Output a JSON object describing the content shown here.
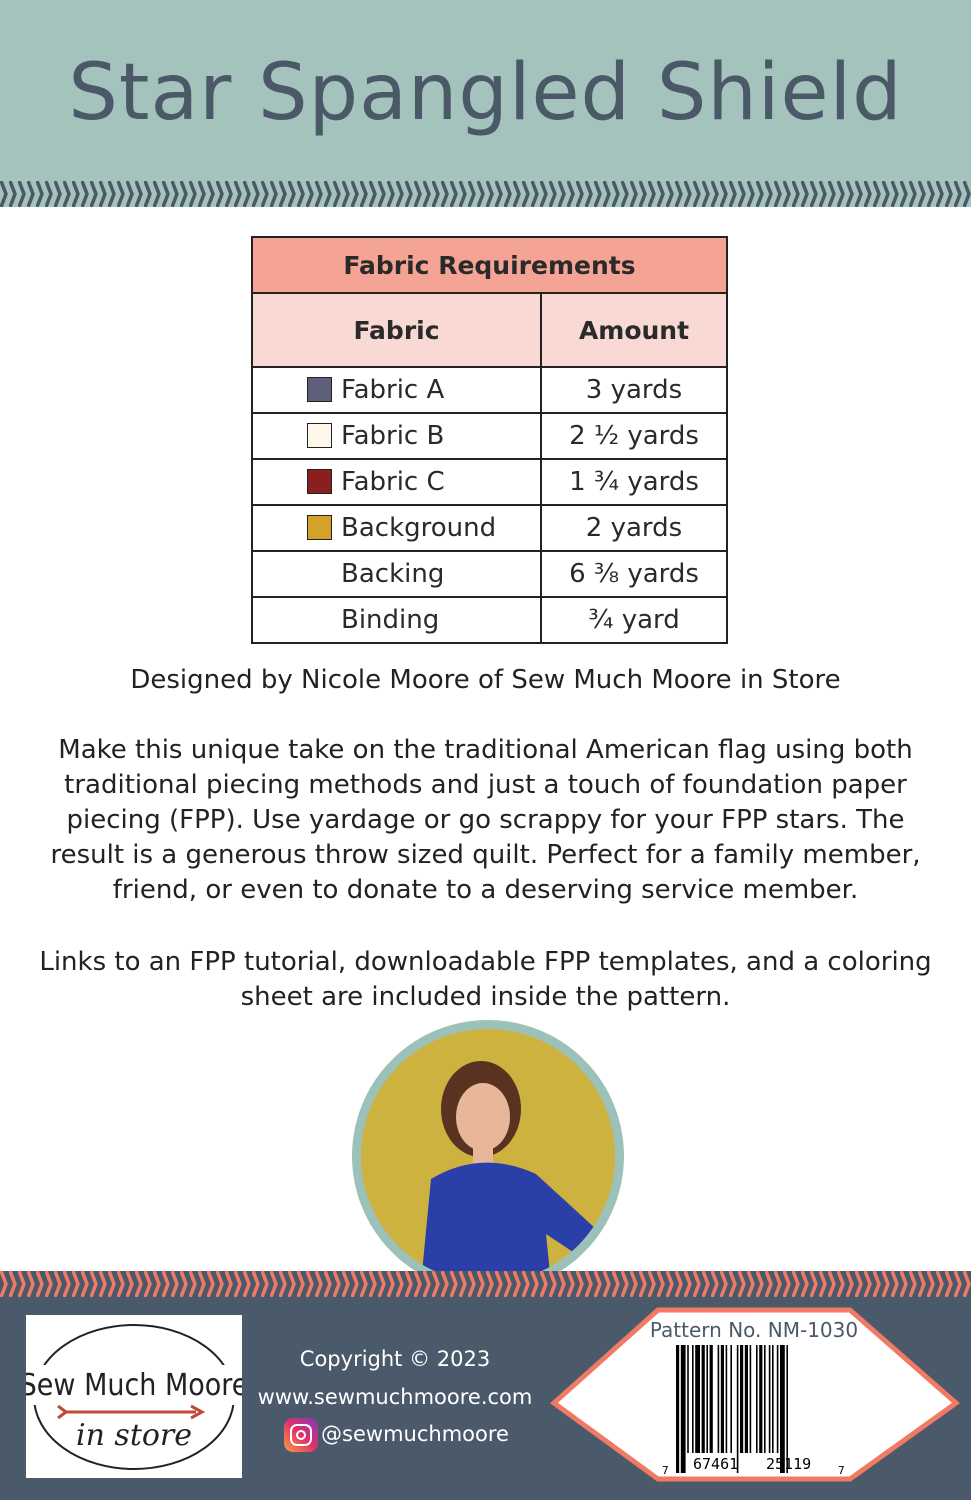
{
  "title": "Star Spangled Shield",
  "colors": {
    "header": "#a3c3bc",
    "title": "#4a5868",
    "table_header": "#f4a394",
    "table_subheader": "#f9d9d3",
    "footer": "#4b5a6b",
    "accent": "#f07a64",
    "photo_bg": "#cdb23f"
  },
  "table": {
    "caption": "Fabric Requirements",
    "columns": [
      "Fabric",
      "Amount"
    ],
    "rows": [
      {
        "fabric": "Fabric A",
        "amount": "3 yards",
        "swatch": "#5e5f78"
      },
      {
        "fabric": "Fabric B",
        "amount": "2 ½ yards",
        "swatch": "#fdf8ea"
      },
      {
        "fabric": "Fabric C",
        "amount": "1 ¾ yards",
        "swatch": "#8b1e1e"
      },
      {
        "fabric": "Background",
        "amount": "2 yards",
        "swatch": "#d4a22a"
      },
      {
        "fabric": "Backing",
        "amount": "6 ⅜ yards"
      },
      {
        "fabric": "Binding",
        "amount": "¾ yard"
      }
    ]
  },
  "designer": "Designed by Nicole Moore of Sew Much Moore in Store",
  "description": [
    "Make this unique take on the traditional American flag using both",
    "traditional piecing methods and just a touch of foundation paper",
    "piecing (FPP). Use yardage or go scrappy for your FPP stars. The",
    "result is a generous throw sized quilt. Perfect for a family member,",
    "friend, or even to donate to a deserving service member."
  ],
  "links_note": [
    "Links to an FPP tutorial, downloadable FPP templates, and a coloring",
    "sheet are included inside the pattern."
  ],
  "footer": {
    "logo_line1": "Sew Much Moore",
    "logo_line2": "in store",
    "copyright": "Copyright © 2023",
    "website": "www.sewmuchmoore.com",
    "instagram": "@sewmuchmoore",
    "instagram_icon": "instagram-icon"
  },
  "barcode": {
    "pattern_no": "Pattern No. NM-1030",
    "digits_left": "7",
    "digits_group1": "67461",
    "digits_group2": "25119",
    "digits_right": "7"
  }
}
